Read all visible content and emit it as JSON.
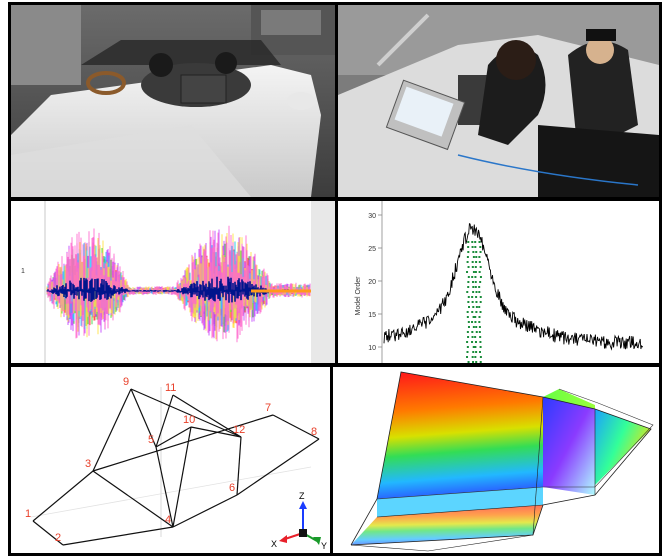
{
  "photos": [
    {
      "name": "photo-car-driver-laptop",
      "description_icon": "car-photo"
    },
    {
      "name": "photo-car-engineers-laptop",
      "description_icon": "car-photo"
    }
  ],
  "vibration_plot": {
    "left_tick": "1",
    "colors": [
      "#ff3b30",
      "#3bd13b",
      "#c040ff",
      "#30c8ff",
      "#ffe23b",
      "#ff66cc",
      "#00148c"
    ]
  },
  "spectrum_plot": {
    "ylabel": "Model Order",
    "yticks": [
      "30",
      "25",
      "20",
      "15",
      "10"
    ],
    "line_color": "#000000",
    "marker_color": "#1a8c3a"
  },
  "wireframe": {
    "points": [
      {
        "id": "1",
        "label": "1"
      },
      {
        "id": "2",
        "label": "2"
      },
      {
        "id": "3",
        "label": "3"
      },
      {
        "id": "4",
        "label": "4"
      },
      {
        "id": "5",
        "label": "5"
      },
      {
        "id": "6",
        "label": "6"
      },
      {
        "id": "7",
        "label": "7"
      },
      {
        "id": "8",
        "label": "8"
      },
      {
        "id": "9",
        "label": "9"
      },
      {
        "id": "10",
        "label": "10"
      },
      {
        "id": "11",
        "label": "11"
      },
      {
        "id": "12",
        "label": "12"
      }
    ],
    "label_color": "#e8402a",
    "triad": {
      "x": "X",
      "y": "Y",
      "z": "Z"
    }
  },
  "mode_shape": {
    "colors": [
      "#e8001c",
      "#ff6a00",
      "#ffe000",
      "#33dd33",
      "#22b8ff",
      "#3344ff",
      "#8a2be2"
    ]
  }
}
